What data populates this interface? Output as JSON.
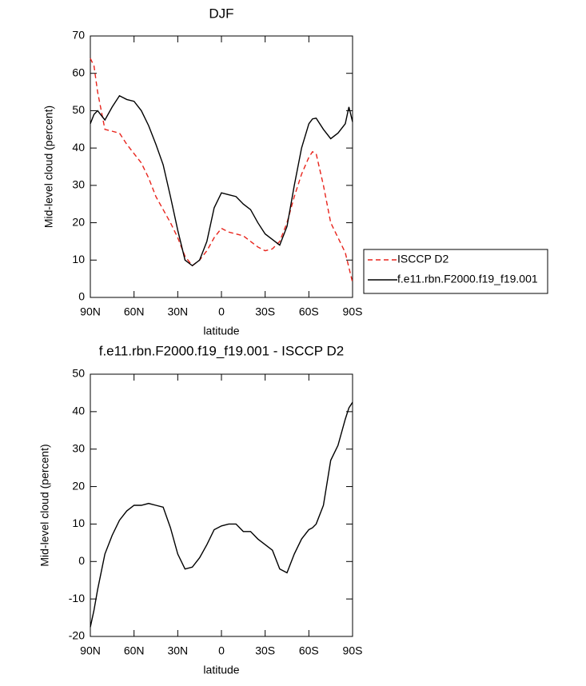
{
  "chart_data": [
    {
      "type": "line",
      "title": "DJF",
      "xlabel": "latitude",
      "ylabel": "Mid-level cloud (percent)",
      "x": [
        90,
        87.5,
        85,
        80,
        75,
        70,
        65,
        60,
        55,
        50,
        45,
        40,
        35,
        30,
        25,
        20,
        15,
        10,
        5,
        0,
        -5,
        -10,
        -15,
        -20,
        -25,
        -30,
        -35,
        -40,
        -45,
        -50,
        -55,
        -60,
        -62.5,
        -65,
        -70,
        -75,
        -80,
        -85,
        -87.5,
        -90
      ],
      "series": [
        {
          "name": "ISCCP D2",
          "color": "#e8241c",
          "dash": true,
          "values": [
            64,
            62,
            55,
            45,
            44.5,
            44,
            41,
            38.5,
            36,
            32,
            27,
            23.5,
            20,
            16,
            11,
            8.5,
            10,
            12.5,
            16,
            18.5,
            17.5,
            17,
            16.5,
            15,
            13.5,
            12.5,
            13,
            15,
            20,
            27,
            33,
            37.5,
            39,
            38.5,
            30,
            20,
            16,
            12,
            8,
            4
          ]
        },
        {
          "name": "f.e11.rbn.F2000.f19_f19.001",
          "color": "#000000",
          "dash": false,
          "values": [
            46.5,
            49,
            50,
            47.5,
            51,
            54,
            53,
            52.5,
            50,
            46,
            41,
            35.5,
            27,
            18,
            10,
            8.5,
            10,
            15,
            24,
            28,
            27.5,
            27,
            25,
            23.5,
            20,
            17,
            15.5,
            14,
            19,
            30,
            40,
            46.5,
            47.8,
            48,
            45,
            42.5,
            44,
            46.5,
            51,
            47
          ]
        }
      ],
      "xlim": [
        90,
        -90
      ],
      "xticks": [
        {
          "value": 90,
          "label": "90N"
        },
        {
          "value": 60,
          "label": "60N"
        },
        {
          "value": 30,
          "label": "30N"
        },
        0,
        {
          "value": -30,
          "label": "30S"
        },
        {
          "value": -60,
          "label": "60S"
        },
        {
          "value": -90,
          "label": "90S"
        }
      ],
      "ylim": [
        0,
        70
      ],
      "yticks": [
        0,
        10,
        20,
        30,
        40,
        50,
        60,
        70
      ],
      "legend": "right"
    },
    {
      "type": "line",
      "title": "f.e11.rbn.F2000.f19_f19.001 - ISCCP D2",
      "xlabel": "latitude",
      "ylabel": "Mid-level cloud (percent)",
      "x": [
        90,
        87.5,
        85,
        80,
        75,
        70,
        65,
        60,
        55,
        50,
        45,
        40,
        35,
        30,
        25,
        20,
        15,
        10,
        5,
        0,
        -5,
        -10,
        -15,
        -20,
        -25,
        -30,
        -35,
        -40,
        -45,
        -50,
        -55,
        -60,
        -62.5,
        -65,
        -70,
        -75,
        -80,
        -85,
        -87.5,
        -90
      ],
      "series": [
        {
          "color": "#000000",
          "dash": false,
          "values": [
            -17.5,
            -13,
            -7.5,
            2,
            7,
            11,
            13.5,
            15,
            15,
            15.5,
            15,
            14.5,
            9,
            2,
            -2,
            -1.5,
            1,
            4.5,
            8.5,
            9.5,
            10,
            10,
            8,
            8,
            6,
            4.5,
            3,
            -2,
            -3,
            2,
            6,
            8.5,
            9,
            10,
            15,
            27,
            31,
            38,
            41,
            42.5
          ]
        }
      ],
      "xlim": [
        90,
        -90
      ],
      "xticks": [
        {
          "value": 90,
          "label": "90N"
        },
        {
          "value": 60,
          "label": "60N"
        },
        {
          "value": 30,
          "label": "30N"
        },
        0,
        {
          "value": -30,
          "label": "30S"
        },
        {
          "value": -60,
          "label": "60S"
        },
        {
          "value": -90,
          "label": "90S"
        }
      ],
      "ylim": [
        -20,
        50
      ],
      "yticks": [
        -20,
        -10,
        0,
        10,
        20,
        30,
        40,
        50
      ]
    }
  ]
}
